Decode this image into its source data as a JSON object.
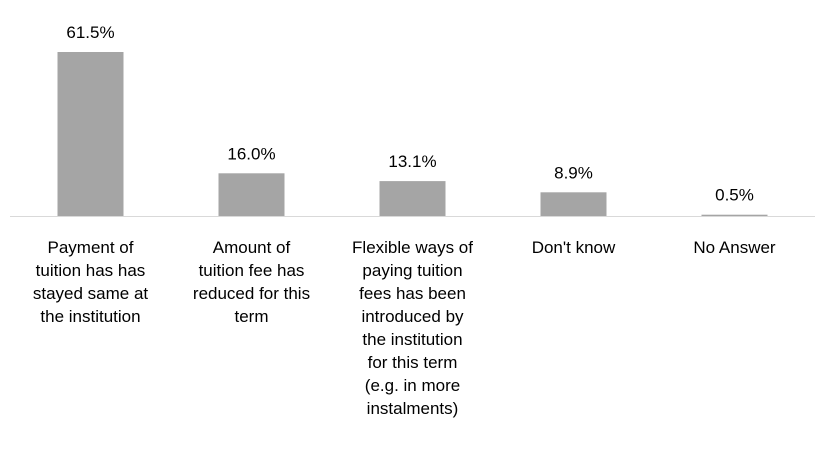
{
  "chart_data": {
    "type": "bar",
    "categories": [
      "Payment of tuition has has stayed same at the institution",
      "Amount of tuition fee has reduced for this term",
      "Flexible ways of paying tuition fees has been introduced by the institution for this term (e.g. in more instalments)",
      "Don't know",
      "No Answer"
    ],
    "category_lines": [
      [
        "Payment of",
        "tuition has has",
        "stayed same at",
        "the institution"
      ],
      [
        "Amount of",
        "tuition fee has",
        "reduced for this",
        "term"
      ],
      [
        "Flexible ways of",
        "paying tuition",
        "fees has been",
        "introduced by",
        "the institution",
        "for this term",
        "(e.g. in more",
        "instalments)"
      ],
      [
        "Don't know"
      ],
      [
        "No Answer"
      ]
    ],
    "values": [
      61.5,
      16.0,
      13.1,
      8.9,
      0.5
    ],
    "value_labels": [
      "61.5%",
      "16.0%",
      "13.1%",
      "8.9%",
      "0.5%"
    ],
    "title": "",
    "xlabel": "",
    "ylabel": "",
    "ylim": [
      0,
      61.5
    ],
    "grid": false,
    "legend": "none",
    "colors": {
      "bar": "#a5a5a5",
      "axis": "#d9d9d9",
      "text": "#000000"
    }
  }
}
